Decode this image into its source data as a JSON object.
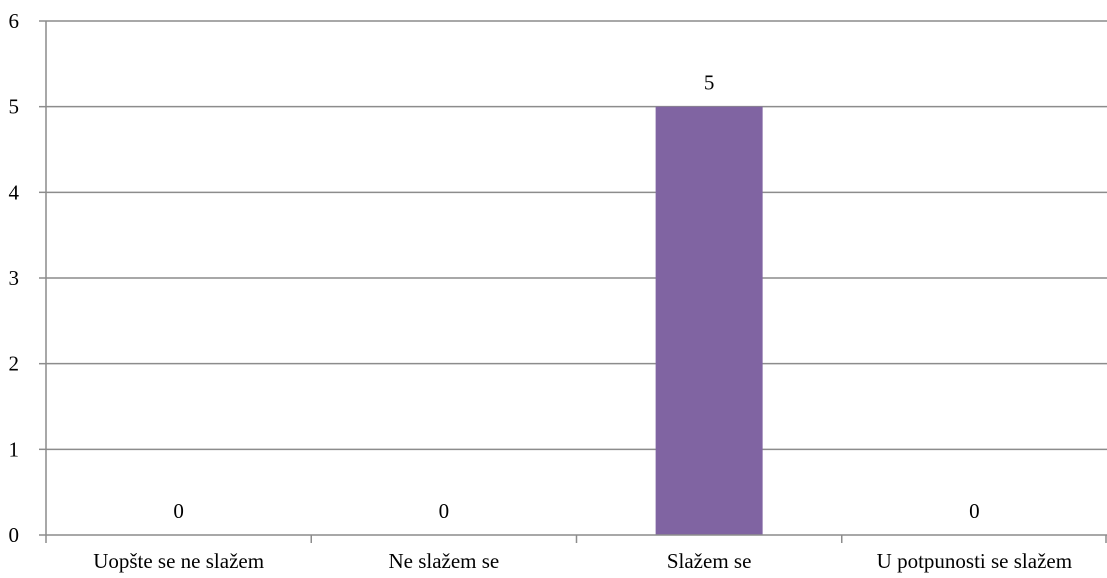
{
  "chart_data": {
    "type": "bar",
    "categories": [
      "Uopšte se ne slažem",
      "Ne slažem se",
      "Slažem se",
      "U potpunosti se slažem"
    ],
    "values": [
      0,
      0,
      5,
      0
    ],
    "data_labels": [
      "0",
      "0",
      "5",
      "0"
    ],
    "title": "",
    "xlabel": "",
    "ylabel": "",
    "ylim": [
      0,
      6
    ],
    "yticks": [
      0,
      1,
      2,
      3,
      4,
      5,
      6
    ],
    "ytick_labels": [
      "0",
      "1",
      "2",
      "3",
      "4",
      "5",
      "6"
    ],
    "grid": true,
    "legend": "none",
    "colors": {
      "bar": "#8064A2",
      "grid": "#8C8C8C",
      "axis": "#8C8C8C",
      "text": "#000000"
    }
  }
}
